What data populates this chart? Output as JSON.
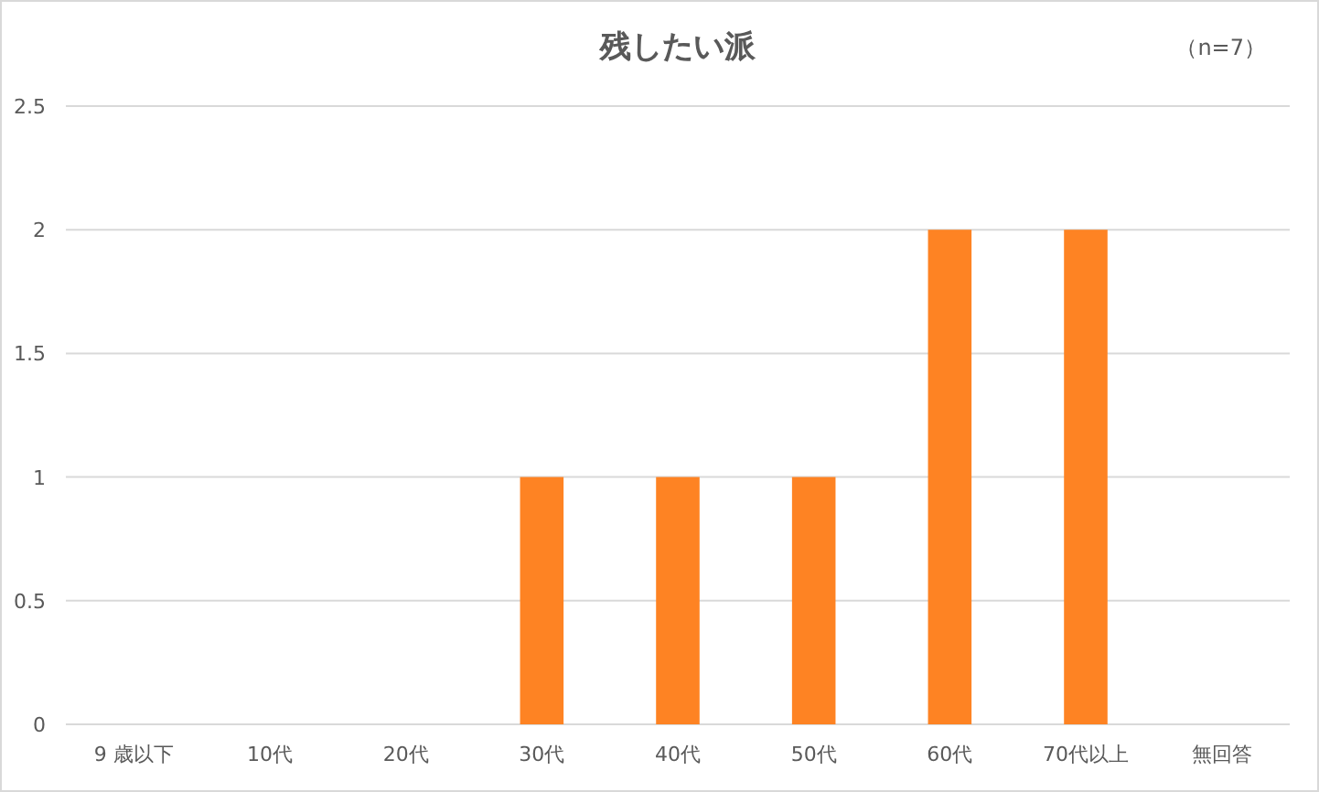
{
  "chart_data": {
    "type": "bar",
    "title": "残したい派",
    "annotations": [
      "（n=7）"
    ],
    "categories": [
      "9 歳以下",
      "10代",
      "20代",
      "30代",
      "40代",
      "50代",
      "60代",
      "70代以上",
      "無回答"
    ],
    "values": [
      0,
      0,
      0,
      1,
      1,
      1,
      2,
      2,
      0
    ],
    "color": "#fe8323",
    "ylim": [
      0,
      2.5
    ],
    "yticks": [
      0,
      0.5,
      1,
      1.5,
      2,
      2.5
    ],
    "grid": "y"
  }
}
